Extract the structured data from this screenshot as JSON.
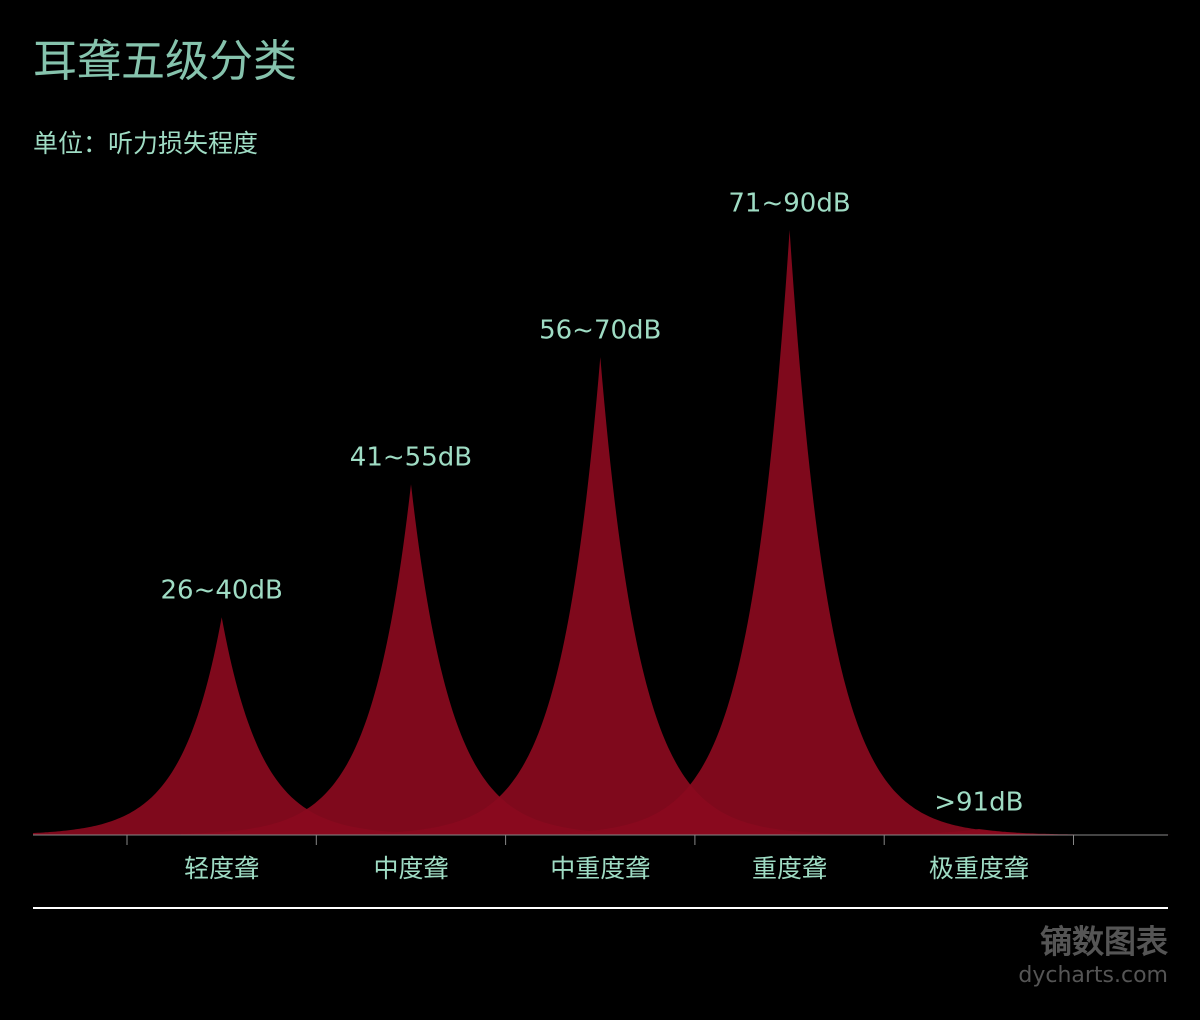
{
  "chart_data": {
    "type": "spike",
    "title": "耳聋五级分类",
    "subtitle": "单位：听力损失程度",
    "categories": [
      "轻度聋",
      "中度聋",
      "中重度聋",
      "重度聋",
      "极重度聋"
    ],
    "values": [
      36,
      58,
      79,
      100,
      1
    ],
    "peak_labels": [
      "26~40dB",
      "41~55dB",
      "56~70dB",
      "71~90dB",
      ">91dB"
    ],
    "color": "#8a0a1e",
    "ylim": [
      0,
      100
    ]
  },
  "watermark": {
    "name": "镝数图表",
    "site": "dycharts.com"
  }
}
